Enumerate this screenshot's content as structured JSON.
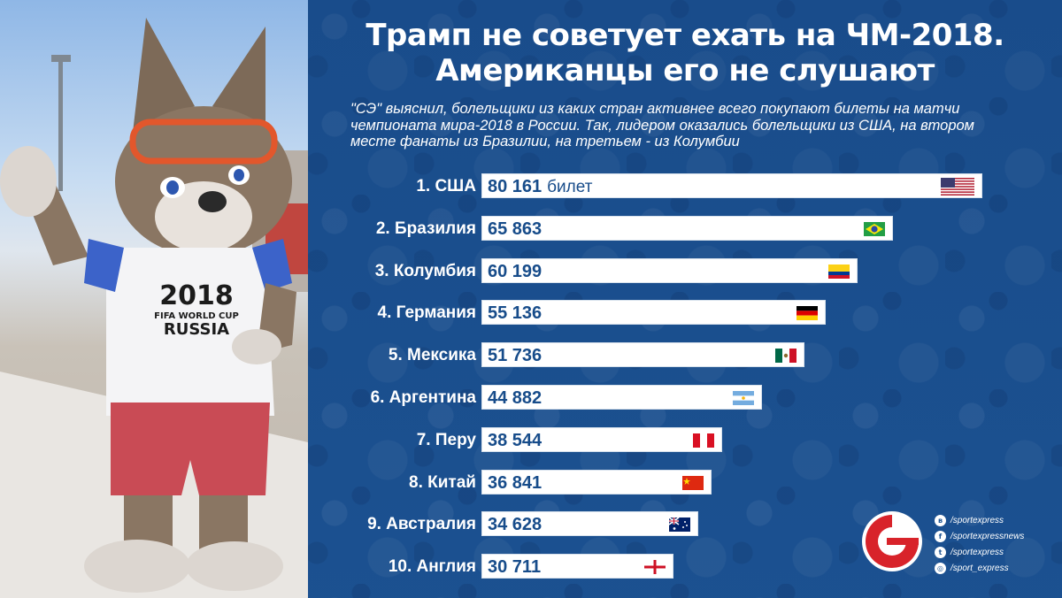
{
  "title": {
    "line1": "Трамп не советует ехать на ЧМ-2018.",
    "line2": "Американцы его не слушают"
  },
  "lead": "\"СЭ\" выяснил, болельщики из каких стран активнее всего покупают билеты на матчи чемпионата мира-2018 в России. Так, лидером оказались болельщики из США, на втором месте фанаты из Бразилии, на третьем - из Колумбии",
  "photo": {
    "shirt_year": "2018",
    "shirt_line2": "FIFA WORLD CUP",
    "shirt_line3": "RUSSIA"
  },
  "chart_data": {
    "type": "bar",
    "orientation": "horizontal",
    "unit_label": "билет",
    "categories": [
      "1. США",
      "2. Бразилия",
      "3. Колумбия",
      "4. Германия",
      "5. Мексика",
      "6. Аргентина",
      "7. Перу",
      "8. Китай",
      "9. Австралия",
      "10. Англия"
    ],
    "values": [
      80161,
      65863,
      60199,
      55136,
      51736,
      44882,
      38544,
      36841,
      34628,
      30711
    ],
    "value_labels": [
      "80 161",
      "65 863",
      "60 199",
      "55 136",
      "51 736",
      "44 882",
      "38 544",
      "36 841",
      "34 628",
      "30 711"
    ],
    "flags": [
      "us-flag-icon",
      "brazil-flag-icon",
      "colombia-flag-icon",
      "germany-flag-icon",
      "mexico-flag-icon",
      "argentina-flag-icon",
      "peru-flag-icon",
      "china-flag-icon",
      "australia-flag-icon",
      "england-flag-icon"
    ]
  },
  "logo": "sport-express-logo",
  "socials": [
    {
      "icon": "vk-icon",
      "label": "/sportexpress"
    },
    {
      "icon": "facebook-icon",
      "label": "/sportexpressnews"
    },
    {
      "icon": "twitter-icon",
      "label": "/sportexpress"
    },
    {
      "icon": "instagram-icon",
      "label": "/sport_express"
    }
  ],
  "colors": {
    "panel": "#1d5494",
    "bar": "#ffffff",
    "value_text": "#174c8a",
    "logo_red": "#d8232a"
  }
}
